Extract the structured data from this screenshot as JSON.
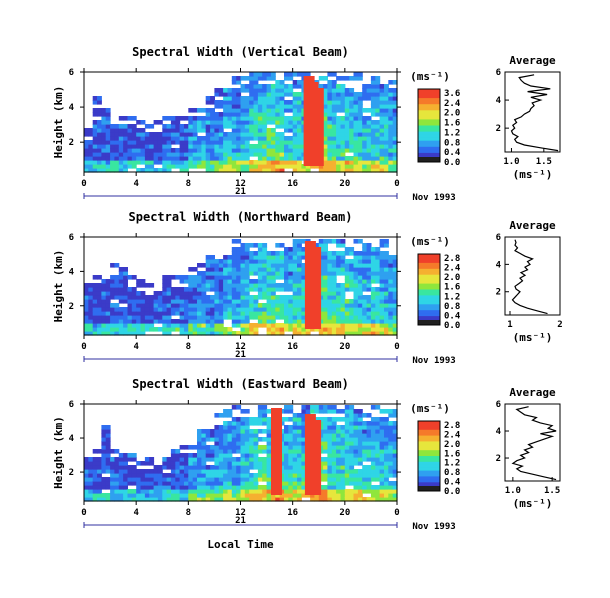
{
  "chart_data": [
    {
      "type": "heatmap",
      "title": "Spectral Width (Vertical Beam)",
      "ylabel": "Height (km)",
      "yticks": [
        "2",
        "4",
        "6"
      ],
      "ylim": [
        0.3,
        6
      ],
      "xticks": [
        "0",
        "4",
        "8",
        "12",
        "16",
        "20",
        "0"
      ],
      "xlim": [
        0,
        24
      ],
      "day_label": "21",
      "date_label": "Nov 1993",
      "colorbar": {
        "label": "(ms⁻¹)",
        "ticks": [
          "3.6",
          "2.4",
          "2.0",
          "1.6",
          "1.2",
          "0.8",
          "0.4",
          "0.0"
        ]
      },
      "intensity_profile": [
        0.8,
        0.9,
        0.7,
        0.8,
        0.9,
        0.8,
        0.7,
        0.6,
        0.7,
        0.8,
        0.9,
        0.8,
        1.4,
        1.8,
        1.5,
        1.8,
        2.3,
        2.0,
        2.4,
        2.9,
        3.2,
        3.4,
        3.5,
        2.6,
        2.9,
        2.7,
        3.6,
        3.8,
        3.1,
        2.8,
        2.9,
        2.6,
        2.3,
        2.7,
        2.4,
        2.1
      ],
      "top_profile": [
        3.0,
        4.8,
        4.2,
        3.8,
        3.6,
        3.9,
        3.5,
        3.2,
        3.4,
        3.6,
        3.8,
        3.9,
        4.2,
        4.4,
        4.8,
        5.1,
        5.6,
        5.8,
        6.0,
        6.0,
        6.0,
        6.0,
        6.0,
        6.0,
        6.0,
        6.0,
        6.0,
        6.0,
        6.0,
        6.0,
        6.0,
        6.0,
        5.9,
        6.0,
        6.0,
        5.9
      ],
      "red_times": [
        17.3,
        17.6,
        18.0
      ],
      "average": {
        "title": "Average",
        "xlabel": "(ms⁻¹)",
        "xticks": [
          "1.0",
          "1.5"
        ],
        "xlim": [
          0.9,
          1.75
        ],
        "heights": [
          0.4,
          0.6,
          0.8,
          1.0,
          1.2,
          1.4,
          1.6,
          1.8,
          2.0,
          2.2,
          2.4,
          2.6,
          2.8,
          3.0,
          3.2,
          3.4,
          3.6,
          3.8,
          4.0,
          4.2,
          4.4,
          4.6,
          4.8,
          5.0,
          5.2,
          5.4,
          5.6,
          5.8
        ],
        "values": [
          1.72,
          1.45,
          1.2,
          1.08,
          1.05,
          1.1,
          1.02,
          1.0,
          1.05,
          1.02,
          1.08,
          1.05,
          1.15,
          1.2,
          1.28,
          1.3,
          1.35,
          1.32,
          1.45,
          1.3,
          1.55,
          1.25,
          1.6,
          1.3,
          1.2,
          1.15,
          1.12,
          1.35
        ]
      }
    },
    {
      "type": "heatmap",
      "title": "Spectral Width (Northward Beam)",
      "ylabel": "Height (km)",
      "yticks": [
        "2",
        "4",
        "6"
      ],
      "ylim": [
        0.3,
        6
      ],
      "xticks": [
        "0",
        "4",
        "8",
        "12",
        "16",
        "20",
        "0"
      ],
      "xlim": [
        0,
        24
      ],
      "day_label": "21",
      "date_label": "Nov 1993",
      "colorbar": {
        "label": "(ms⁻¹)",
        "ticks": [
          "2.8",
          "2.4",
          "2.0",
          "1.6",
          "1.2",
          "0.8",
          "0.4",
          "0.0"
        ]
      },
      "intensity_profile": [
        0.8,
        0.7,
        0.6,
        0.7,
        0.8,
        0.6,
        0.5,
        0.6,
        0.7,
        0.8,
        0.9,
        0.7,
        1.3,
        1.6,
        1.4,
        1.7,
        2.2,
        2.0,
        2.3,
        2.8,
        3.1,
        3.4,
        3.3,
        2.6,
        2.8,
        2.6,
        3.4,
        3.5,
        3.0,
        2.8,
        2.9,
        2.5,
        2.4,
        2.8,
        2.3,
        2.0
      ],
      "top_profile": [
        3.6,
        4.2,
        4.4,
        4.6,
        4.5,
        3.9,
        3.7,
        3.4,
        3.6,
        3.8,
        3.9,
        4.0,
        4.3,
        4.5,
        5.0,
        5.4,
        5.8,
        5.9,
        6.0,
        6.0,
        6.0,
        6.0,
        6.0,
        6.0,
        6.0,
        6.0,
        6.0,
        6.0,
        6.0,
        6.0,
        6.0,
        6.0,
        5.8,
        6.0,
        6.0,
        5.8
      ],
      "red_times": [
        17.4,
        17.8
      ],
      "average": {
        "title": "Average",
        "xlabel": "(ms⁻¹)",
        "xticks": [
          "1",
          "2"
        ],
        "xlim": [
          0.9,
          2.0
        ],
        "heights": [
          0.4,
          0.6,
          0.8,
          1.0,
          1.2,
          1.4,
          1.6,
          1.8,
          2.0,
          2.2,
          2.4,
          2.6,
          2.8,
          3.0,
          3.2,
          3.4,
          3.6,
          3.8,
          4.0,
          4.2,
          4.4,
          4.6,
          4.8,
          5.0,
          5.2,
          5.4,
          5.6,
          5.8
        ],
        "values": [
          1.75,
          1.55,
          1.35,
          1.2,
          1.1,
          1.05,
          1.1,
          1.15,
          1.2,
          1.12,
          1.1,
          1.18,
          1.25,
          1.2,
          1.3,
          1.22,
          1.35,
          1.3,
          1.4,
          1.35,
          1.45,
          1.3,
          1.2,
          1.1,
          1.15,
          1.1,
          1.12,
          1.1
        ]
      }
    },
    {
      "type": "heatmap",
      "title": "Spectral Width (Eastward Beam)",
      "ylabel": "Height (km)",
      "yticks": [
        "2",
        "4",
        "6"
      ],
      "ylim": [
        0.3,
        6
      ],
      "xticks": [
        "0",
        "4",
        "8",
        "12",
        "16",
        "20",
        "0"
      ],
      "xlim": [
        0,
        24
      ],
      "day_label": "21",
      "date_label": "Nov 1993",
      "xlabel": "Local Time",
      "colorbar": {
        "label": "(ms⁻¹)",
        "ticks": [
          "2.8",
          "2.4",
          "2.0",
          "1.6",
          "1.2",
          "0.8",
          "0.4",
          "0.0"
        ]
      },
      "intensity_profile": [
        0.9,
        0.8,
        0.7,
        0.8,
        0.9,
        0.7,
        0.6,
        0.7,
        0.8,
        0.9,
        1.0,
        0.9,
        1.5,
        1.8,
        1.6,
        1.9,
        2.4,
        2.1,
        2.5,
        2.9,
        3.3,
        3.4,
        3.4,
        2.7,
        2.9,
        2.8,
        3.5,
        3.6,
        3.1,
        2.9,
        3.0,
        2.6,
        2.5,
        2.8,
        2.4,
        2.2
      ],
      "top_profile": [
        3.2,
        3.6,
        4.8,
        3.8,
        3.4,
        3.2,
        3.0,
        3.0,
        3.2,
        3.4,
        3.6,
        3.8,
        4.1,
        4.6,
        5.0,
        5.5,
        5.8,
        6.0,
        6.0,
        6.0,
        6.0,
        6.0,
        6.0,
        6.0,
        6.0,
        6.0,
        6.0,
        6.0,
        6.0,
        6.0,
        6.0,
        6.0,
        5.9,
        6.0,
        6.0,
        5.8
      ],
      "red_times": [
        14.8,
        17.4,
        17.8
      ],
      "average": {
        "title": "Average",
        "xlabel": "(ms⁻¹)",
        "xticks": [
          "1.0",
          "1.5"
        ],
        "xlim": [
          0.9,
          1.6
        ],
        "heights": [
          0.4,
          0.6,
          0.8,
          1.0,
          1.2,
          1.4,
          1.6,
          1.8,
          2.0,
          2.2,
          2.4,
          2.6,
          2.8,
          3.0,
          3.2,
          3.4,
          3.6,
          3.8,
          4.0,
          4.2,
          4.4,
          4.6,
          4.8,
          5.0,
          5.2,
          5.4,
          5.6,
          5.8
        ],
        "values": [
          1.55,
          1.4,
          1.25,
          1.1,
          1.05,
          1.12,
          1.0,
          1.05,
          1.15,
          1.1,
          1.2,
          1.15,
          1.25,
          1.2,
          1.3,
          1.4,
          1.5,
          1.35,
          1.55,
          1.45,
          1.5,
          1.35,
          1.25,
          1.3,
          1.15,
          1.1,
          1.05,
          1.2
        ]
      }
    }
  ]
}
